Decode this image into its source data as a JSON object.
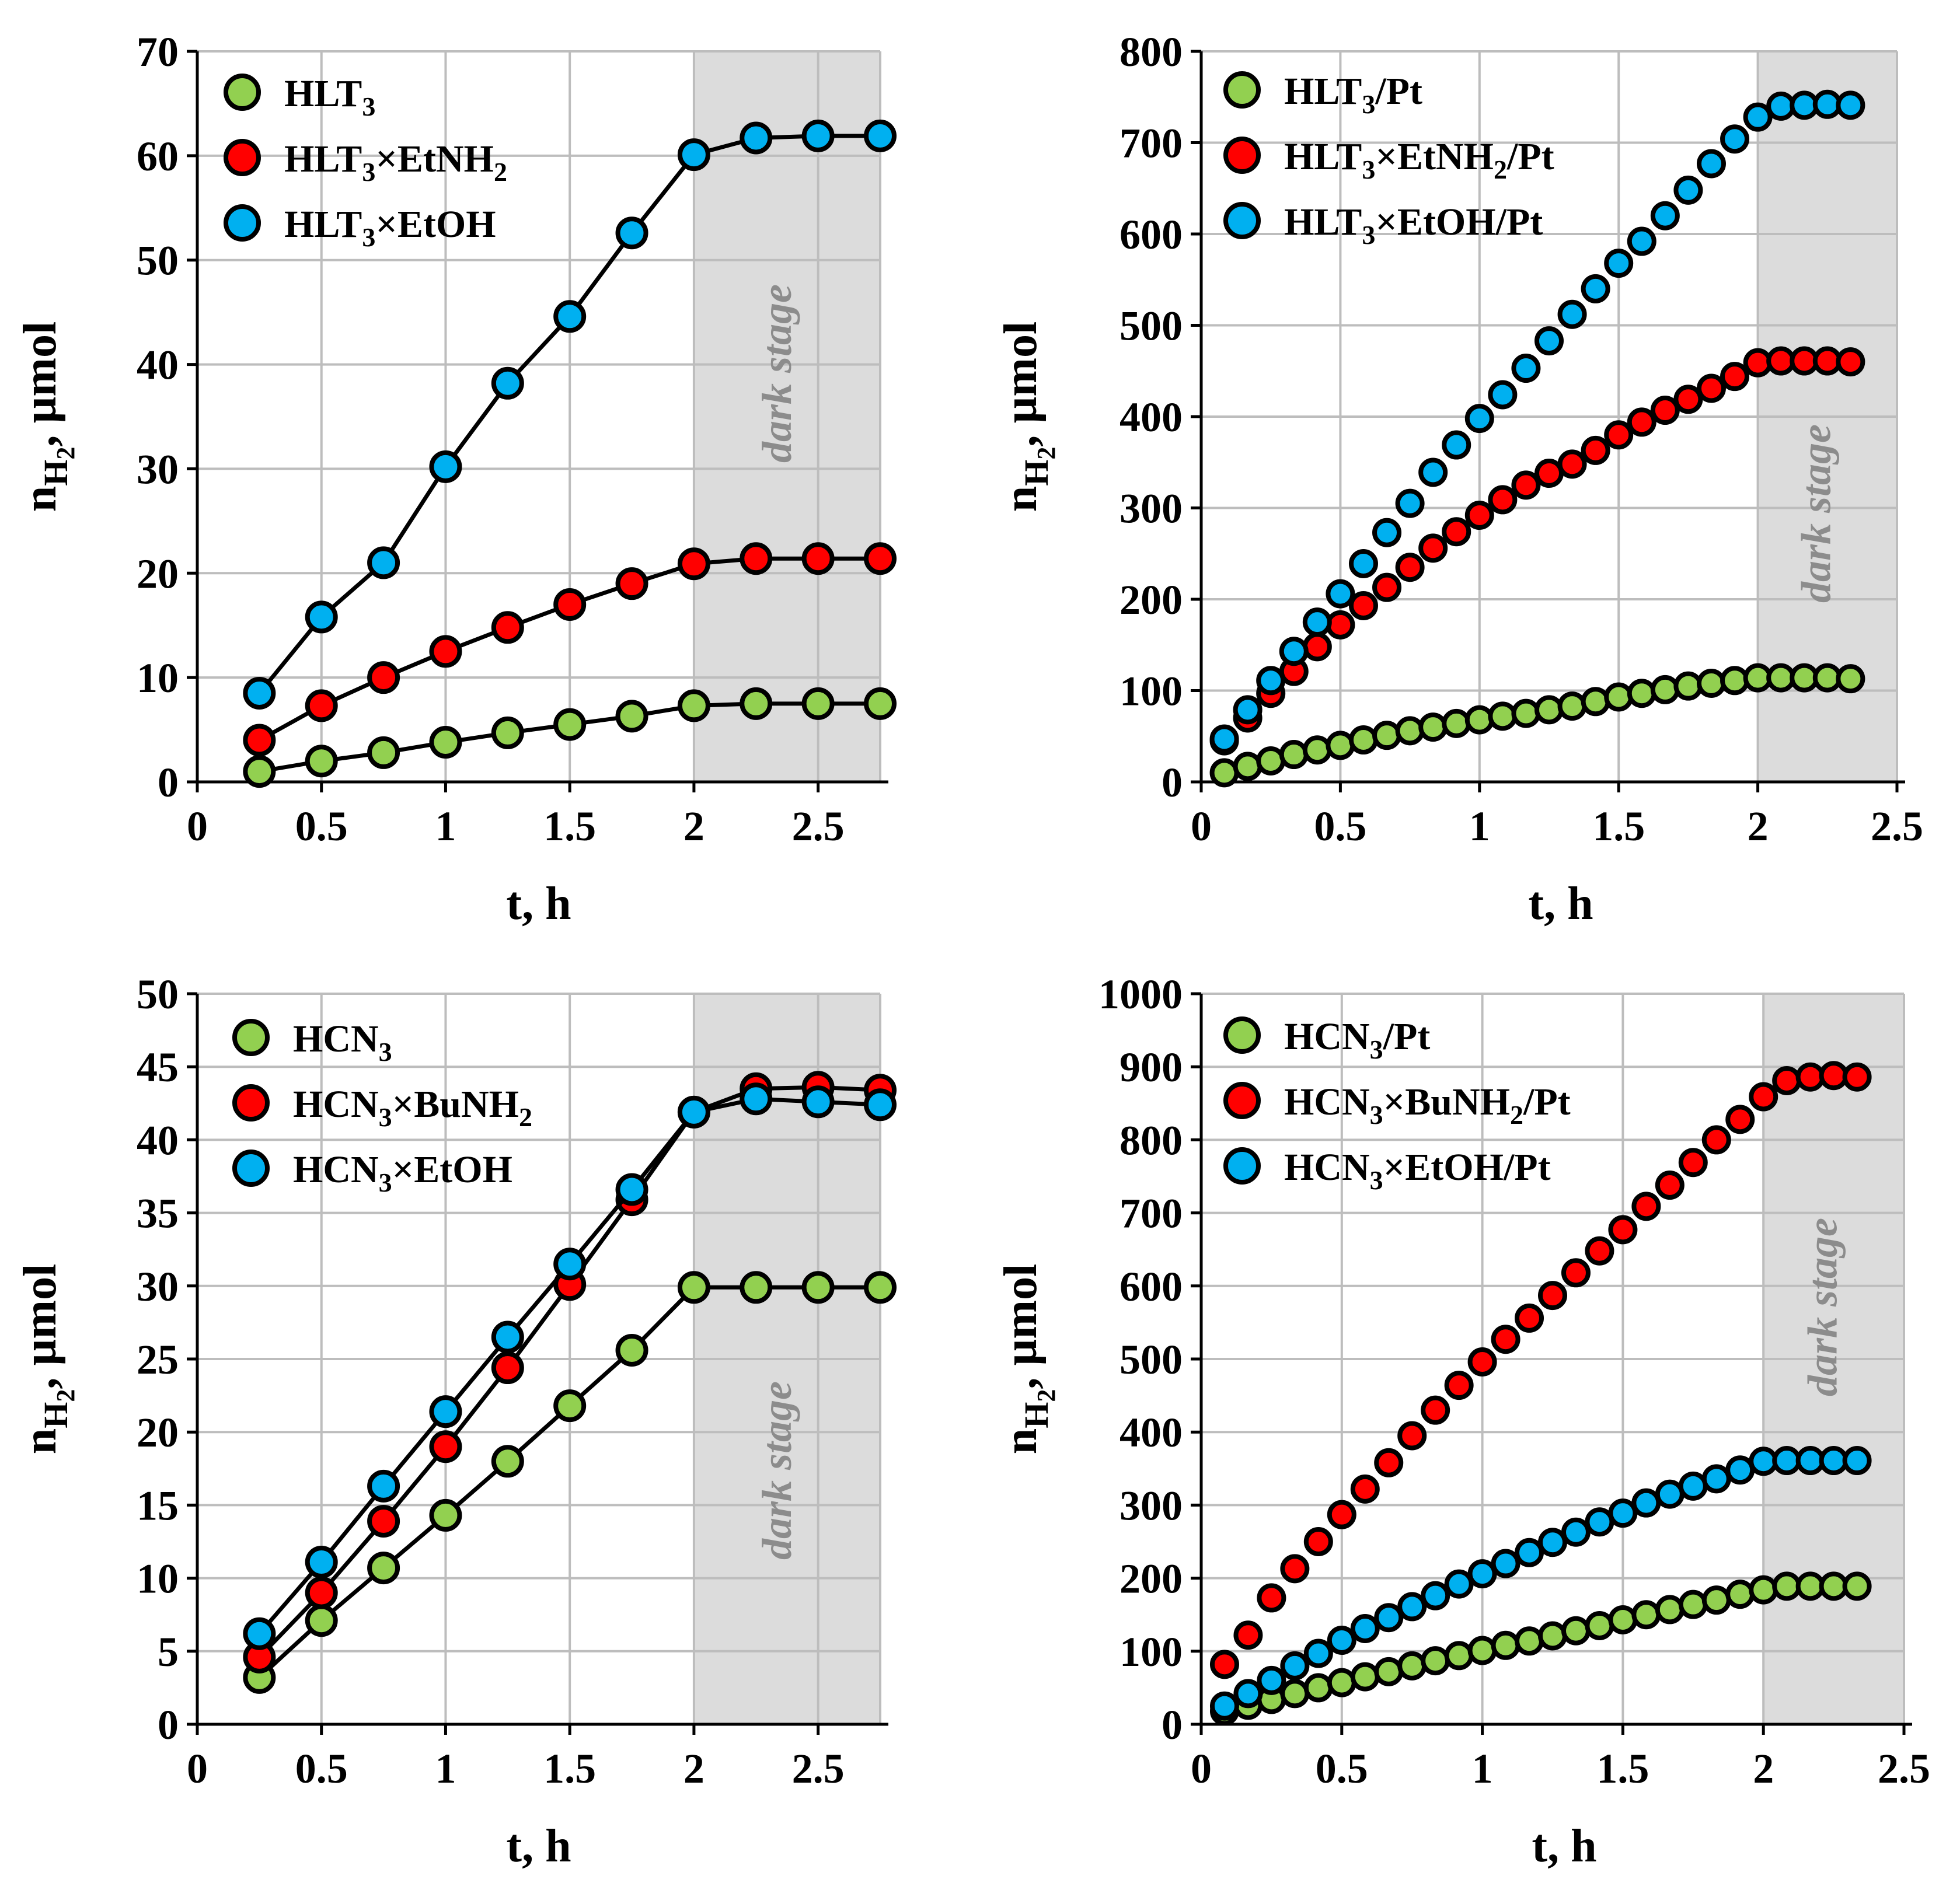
{
  "figure": {
    "dark_stage_label": "dark stage",
    "x_axis_title": "t, h",
    "y_axis_title": {
      "main": "n",
      "sub": "H",
      "subsub": "2",
      "tail": ", µmol"
    }
  },
  "colors": {
    "green": "#92d050",
    "red": "#ff0000",
    "blue": "#00b0f0",
    "dark_band": "#dcdcdc"
  },
  "chart_data": [
    {
      "type": "line",
      "id": "hlt3",
      "xlim": [
        0,
        2.75
      ],
      "ylim": [
        0,
        70
      ],
      "xticks": [
        0,
        0.5,
        1,
        1.5,
        2,
        2.5
      ],
      "xtick_labels": [
        "0",
        "0.5",
        "1",
        "1.5",
        "2",
        "2.5"
      ],
      "yticks": [
        0,
        10,
        20,
        30,
        40,
        50,
        60,
        70
      ],
      "ytick_labels": [
        "0",
        "10",
        "20",
        "30",
        "40",
        "50",
        "60",
        "70"
      ],
      "xlabel": "t, h",
      "ylabel": "nH2, µmol",
      "dark_stage": [
        2,
        2.75
      ],
      "series": [
        {
          "name_parts": [
            "HLT",
            "3",
            ""
          ],
          "color": "green",
          "connected": true,
          "x": [
            0.25,
            0.5,
            0.75,
            1,
            1.25,
            1.5,
            1.75,
            2,
            2.25,
            2.5,
            2.75
          ],
          "y": [
            1.0,
            2.0,
            2.8,
            3.8,
            4.7,
            5.5,
            6.3,
            7.3,
            7.5,
            7.5,
            7.5
          ]
        },
        {
          "name_parts": [
            "HLT",
            "3",
            "×EtNH",
            "2",
            ""
          ],
          "color": "red",
          "connected": true,
          "x": [
            0.25,
            0.5,
            0.75,
            1,
            1.25,
            1.5,
            1.75,
            2,
            2.25,
            2.5,
            2.75
          ],
          "y": [
            4.0,
            7.3,
            10.0,
            12.5,
            14.8,
            17.0,
            19.0,
            20.9,
            21.4,
            21.4,
            21.4
          ]
        },
        {
          "name_parts": [
            "HLT",
            "3",
            "×EtOH"
          ],
          "color": "blue",
          "connected": true,
          "x": [
            0.25,
            0.5,
            0.75,
            1,
            1.25,
            1.5,
            1.75,
            2,
            2.25,
            2.5,
            2.75
          ],
          "y": [
            8.5,
            15.8,
            21.0,
            30.2,
            38.2,
            44.6,
            52.6,
            60.1,
            61.7,
            61.9,
            61.9
          ]
        }
      ]
    },
    {
      "type": "scatter",
      "id": "hlt3-pt",
      "xlim": [
        0,
        2.5
      ],
      "ylim": [
        0,
        800
      ],
      "xticks": [
        0,
        0.5,
        1,
        1.5,
        2,
        2.5
      ],
      "xtick_labels": [
        "0",
        "0.5",
        "1",
        "1.5",
        "2",
        "2.5"
      ],
      "yticks": [
        0,
        100,
        200,
        300,
        400,
        500,
        600,
        700,
        800
      ],
      "ytick_labels": [
        "0",
        "100",
        "200",
        "300",
        "400",
        "500",
        "600",
        "700",
        "800"
      ],
      "xlabel": "t, h",
      "ylabel": "nH2, µmol",
      "dark_stage": [
        2,
        2.5
      ],
      "series": [
        {
          "name_parts": [
            "HLT",
            "3",
            "/Pt"
          ],
          "color": "green",
          "connected": false,
          "x": [
            0.083,
            0.167,
            0.25,
            0.333,
            0.417,
            0.5,
            0.583,
            0.667,
            0.75,
            0.833,
            0.917,
            1.0,
            1.083,
            1.167,
            1.25,
            1.333,
            1.417,
            1.5,
            1.583,
            1.667,
            1.75,
            1.833,
            1.917,
            2.0,
            2.083,
            2.167,
            2.25,
            2.333
          ],
          "y": [
            10,
            17,
            23,
            30,
            35,
            40,
            46,
            51,
            56,
            60,
            64,
            68,
            72,
            75,
            79,
            83,
            88,
            93,
            97,
            101,
            105,
            108,
            111,
            114,
            114,
            114,
            114,
            113
          ]
        },
        {
          "name_parts": [
            "HLT",
            "3",
            "×EtNH",
            "2",
            "/Pt"
          ],
          "color": "red",
          "connected": false,
          "x": [
            0.083,
            0.167,
            0.25,
            0.333,
            0.417,
            0.5,
            0.583,
            0.667,
            0.75,
            0.833,
            0.917,
            1.0,
            1.083,
            1.167,
            1.25,
            1.333,
            1.417,
            1.5,
            1.583,
            1.667,
            1.75,
            1.833,
            1.917,
            2.0,
            2.083,
            2.167,
            2.25,
            2.333
          ],
          "y": [
            45,
            70,
            97,
            121,
            148,
            172,
            193,
            213,
            235,
            256,
            274,
            292,
            309,
            325,
            338,
            348,
            363,
            380,
            394,
            407,
            419,
            431,
            444,
            459,
            461,
            461,
            461,
            460
          ]
        },
        {
          "name_parts": [
            "HLT",
            "3",
            "×EtOH/Pt"
          ],
          "color": "blue",
          "connected": false,
          "x": [
            0.083,
            0.167,
            0.25,
            0.333,
            0.417,
            0.5,
            0.583,
            0.667,
            0.75,
            0.833,
            0.917,
            1.0,
            1.083,
            1.167,
            1.25,
            1.333,
            1.417,
            1.5,
            1.583,
            1.667,
            1.75,
            1.833,
            1.917,
            2.0,
            2.083,
            2.167,
            2.25,
            2.333
          ],
          "y": [
            47,
            79,
            111,
            143,
            175,
            206,
            239,
            273,
            305,
            339,
            369,
            398,
            424,
            453,
            483,
            512,
            540,
            568,
            592,
            620,
            648,
            677,
            704,
            728,
            740,
            741,
            742,
            741
          ]
        }
      ]
    },
    {
      "type": "line",
      "id": "hcn3",
      "xlim": [
        0,
        2.75
      ],
      "ylim": [
        0,
        50
      ],
      "xticks": [
        0,
        0.5,
        1,
        1.5,
        2,
        2.5
      ],
      "xtick_labels": [
        "0",
        "0.5",
        "1",
        "1.5",
        "2",
        "2.5"
      ],
      "yticks": [
        0,
        5,
        10,
        15,
        20,
        25,
        30,
        35,
        40,
        45,
        50
      ],
      "ytick_labels": [
        "0",
        "5",
        "10",
        "15",
        "20",
        "25",
        "30",
        "35",
        "40",
        "45",
        "50"
      ],
      "xlabel": "t, h",
      "ylabel": "nH2, µmol",
      "dark_stage": [
        2,
        2.75
      ],
      "series": [
        {
          "name_parts": [
            "HCN",
            "3",
            ""
          ],
          "color": "green",
          "connected": true,
          "x": [
            0.25,
            0.5,
            0.75,
            1,
            1.25,
            1.5,
            1.75,
            2,
            2.25,
            2.5,
            2.75
          ],
          "y": [
            3.2,
            7.1,
            10.7,
            14.3,
            18.0,
            21.8,
            25.6,
            29.9,
            29.9,
            29.9,
            29.9
          ]
        },
        {
          "name_parts": [
            "HCN",
            "3",
            "×BuNH",
            "2",
            ""
          ],
          "color": "red",
          "connected": true,
          "x": [
            0.25,
            0.5,
            0.75,
            1,
            1.25,
            1.5,
            1.75,
            2,
            2.25,
            2.5,
            2.75
          ],
          "y": [
            4.6,
            9.0,
            13.9,
            19.0,
            24.4,
            30.1,
            35.9,
            41.9,
            43.5,
            43.6,
            43.4
          ]
        },
        {
          "name_parts": [
            "HCN",
            "3",
            "×EtOH"
          ],
          "color": "blue",
          "connected": true,
          "x": [
            0.25,
            0.5,
            0.75,
            1,
            1.25,
            1.5,
            1.75,
            2,
            2.25,
            2.5,
            2.75
          ],
          "y": [
            6.2,
            11.1,
            16.3,
            21.4,
            26.5,
            31.5,
            36.6,
            41.9,
            42.8,
            42.6,
            42.4
          ]
        }
      ]
    },
    {
      "type": "scatter",
      "id": "hcn3-pt",
      "xlim": [
        0,
        2.5
      ],
      "ylim": [
        0,
        1000
      ],
      "xticks": [
        0,
        0.5,
        1,
        1.5,
        2,
        2.5
      ],
      "xtick_labels": [
        "0",
        "0.5",
        "1",
        "1.5",
        "2",
        "2.5"
      ],
      "yticks": [
        0,
        100,
        200,
        300,
        400,
        500,
        600,
        700,
        800,
        900,
        1000
      ],
      "ytick_labels": [
        "0",
        "100",
        "200",
        "300",
        "400",
        "500",
        "600",
        "700",
        "800",
        "900",
        "1000"
      ],
      "xlabel": "t, h",
      "ylabel": "nH2, µmol",
      "dark_stage": [
        2,
        2.5
      ],
      "series": [
        {
          "name_parts": [
            "HCN",
            "3",
            "/Pt"
          ],
          "color": "green",
          "connected": false,
          "x": [
            0.083,
            0.167,
            0.25,
            0.333,
            0.417,
            0.5,
            0.583,
            0.667,
            0.75,
            0.833,
            0.917,
            1.0,
            1.083,
            1.167,
            1.25,
            1.333,
            1.417,
            1.5,
            1.583,
            1.667,
            1.75,
            1.833,
            1.917,
            2.0,
            2.083,
            2.167,
            2.25,
            2.333
          ],
          "y": [
            18,
            26,
            34,
            42,
            50,
            57,
            65,
            72,
            80,
            87,
            94,
            101,
            108,
            114,
            121,
            128,
            135,
            143,
            150,
            157,
            164,
            170,
            178,
            184,
            189,
            189,
            189,
            189
          ]
        },
        {
          "name_parts": [
            "HCN",
            "3",
            "×BuNH",
            "2",
            "/Pt"
          ],
          "color": "red",
          "connected": false,
          "x": [
            0.083,
            0.167,
            0.25,
            0.333,
            0.417,
            0.5,
            0.583,
            0.667,
            0.75,
            0.833,
            0.917,
            1.0,
            1.083,
            1.167,
            1.25,
            1.333,
            1.417,
            1.5,
            1.583,
            1.667,
            1.75,
            1.833,
            1.917,
            2.0,
            2.083,
            2.167,
            2.25,
            2.333
          ],
          "y": [
            82,
            122,
            173,
            213,
            250,
            287,
            322,
            358,
            395,
            430,
            464,
            496,
            527,
            556,
            587,
            618,
            648,
            677,
            709,
            738,
            769,
            800,
            828,
            859,
            881,
            886,
            888,
            886
          ]
        },
        {
          "name_parts": [
            "HCN",
            "3",
            "×EtOH/Pt"
          ],
          "color": "blue",
          "connected": false,
          "x": [
            0.083,
            0.167,
            0.25,
            0.333,
            0.417,
            0.5,
            0.583,
            0.667,
            0.75,
            0.833,
            0.917,
            1.0,
            1.083,
            1.167,
            1.25,
            1.333,
            1.417,
            1.5,
            1.583,
            1.667,
            1.75,
            1.833,
            1.917,
            2.0,
            2.083,
            2.167,
            2.25,
            2.333
          ],
          "y": [
            25,
            42,
            60,
            80,
            97,
            115,
            131,
            146,
            161,
            176,
            192,
            206,
            220,
            235,
            249,
            263,
            277,
            289,
            303,
            315,
            326,
            336,
            348,
            360,
            361,
            361,
            361,
            361
          ]
        }
      ]
    }
  ]
}
